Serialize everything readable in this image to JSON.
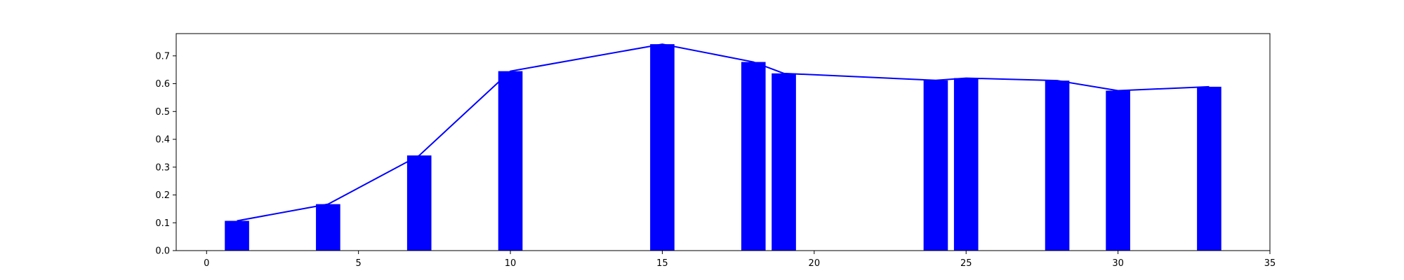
{
  "chart_data": {
    "type": "bar",
    "title": "",
    "xlabel": "",
    "ylabel": "",
    "xlim": [
      -1,
      35
    ],
    "ylim": [
      0,
      0.78
    ],
    "grid": false,
    "bar_width": 0.8,
    "x": [
      1,
      4,
      7,
      10,
      15,
      18,
      19,
      24,
      25,
      28,
      30,
      33
    ],
    "values": [
      0.107,
      0.167,
      0.342,
      0.645,
      0.742,
      0.678,
      0.637,
      0.612,
      0.62,
      0.611,
      0.575,
      0.589
    ],
    "line": {
      "x": [
        1,
        4,
        7,
        10,
        15,
        18,
        19,
        24,
        25,
        28,
        30,
        33
      ],
      "y": [
        0.107,
        0.167,
        0.342,
        0.645,
        0.742,
        0.678,
        0.637,
        0.612,
        0.62,
        0.611,
        0.575,
        0.589
      ]
    },
    "x_ticks": [
      0,
      5,
      10,
      15,
      20,
      25,
      30,
      35
    ],
    "x_tick_labels": [
      "0",
      "5",
      "10",
      "15",
      "20",
      "25",
      "30",
      "35"
    ],
    "y_ticks": [
      0.0,
      0.1,
      0.2,
      0.3,
      0.4,
      0.5,
      0.6,
      0.7
    ],
    "y_tick_labels": [
      "0.0",
      "0.1",
      "0.2",
      "0.3",
      "0.4",
      "0.5",
      "0.6",
      "0.7"
    ],
    "colors": {
      "bars": "#0000ff",
      "line": "#0000ff",
      "axes": "#000000"
    }
  }
}
